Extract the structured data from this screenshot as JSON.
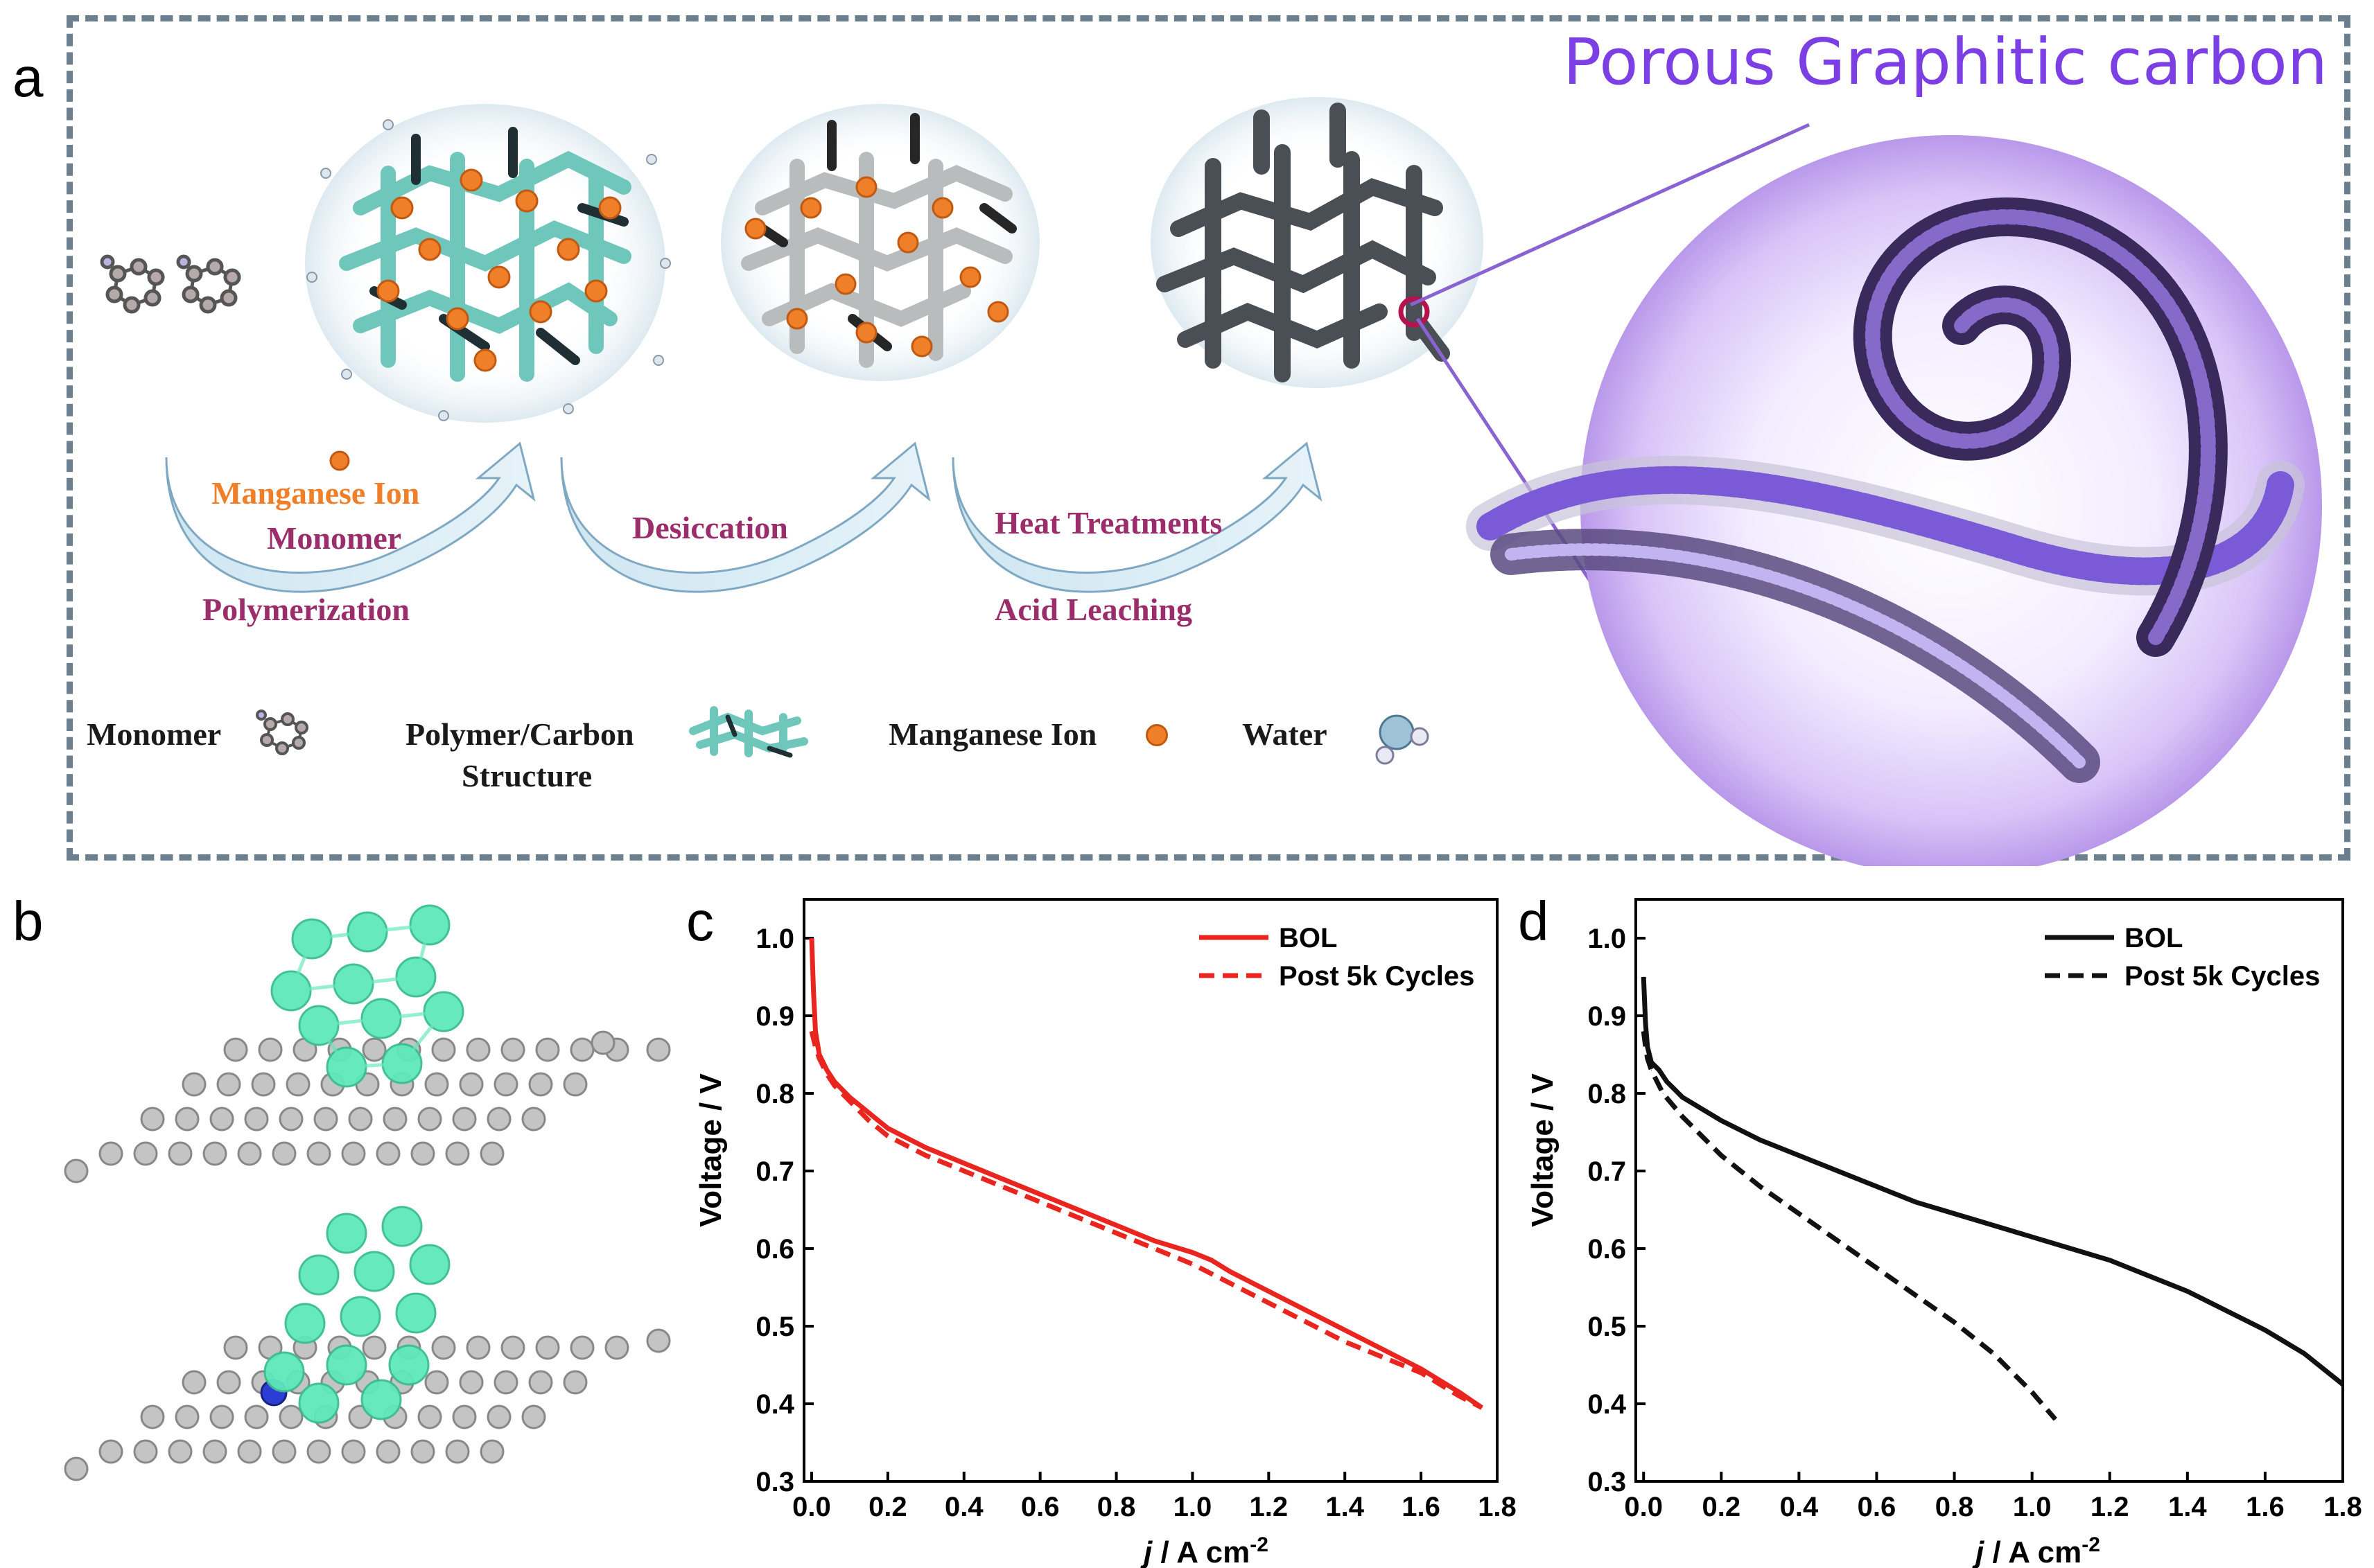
{
  "panel_labels": {
    "a": "a",
    "b": "b",
    "c": "c",
    "d": "d"
  },
  "panel_a": {
    "title": "Porous Graphitic carbon",
    "step1_top": "Manganese Ion",
    "step1_mid": "Monomer",
    "step1_bottom": "Polymerization",
    "step2": "Desiccation",
    "step3_top": "Heat Treatments",
    "step3_bottom": "Acid Leaching",
    "legend": {
      "monomer": "Monomer",
      "polymer_line1": "Polymer/Carbon",
      "polymer_line2": "Structure",
      "manganese": "Manganese Ion",
      "water": "Water"
    },
    "colors": {
      "manganese": "#f07f2a",
      "polymer": "#8fd6cc",
      "title": "#7b3fe4",
      "step": "#9b2d6b",
      "border": "#6b7f8e"
    }
  },
  "chart_data": [
    {
      "panel": "c",
      "type": "line",
      "xlabel_italic": "j",
      "xlabel_rest": " / A cm",
      "xlabel_sup": "-2",
      "ylabel": "Voltage / V",
      "xlim": [
        -0.02,
        1.8
      ],
      "ylim": [
        0.3,
        1.05
      ],
      "xticks": [
        "0.0",
        "0.2",
        "0.4",
        "0.6",
        "0.8",
        "1.0",
        "1.2",
        "1.4",
        "1.6",
        "1.8"
      ],
      "yticks": [
        "0.3",
        "0.4",
        "0.5",
        "0.6",
        "0.7",
        "0.8",
        "0.9",
        "1.0"
      ],
      "legend_position": "top-right",
      "series": [
        {
          "name": "BOL",
          "color": "#e8261f",
          "dash": "solid",
          "x": [
            0.0,
            0.005,
            0.01,
            0.02,
            0.04,
            0.06,
            0.1,
            0.15,
            0.2,
            0.3,
            0.4,
            0.5,
            0.6,
            0.7,
            0.8,
            0.9,
            1.0,
            1.05,
            1.1,
            1.2,
            1.3,
            1.4,
            1.5,
            1.6,
            1.7,
            1.76
          ],
          "y": [
            1.0,
            0.93,
            0.88,
            0.85,
            0.83,
            0.815,
            0.795,
            0.775,
            0.755,
            0.73,
            0.71,
            0.69,
            0.67,
            0.65,
            0.63,
            0.61,
            0.595,
            0.585,
            0.57,
            0.545,
            0.52,
            0.495,
            0.47,
            0.445,
            0.415,
            0.395
          ]
        },
        {
          "name": "Post 5k Cycles",
          "color": "#e8261f",
          "dash": "dashed",
          "x": [
            0.0,
            0.01,
            0.02,
            0.04,
            0.06,
            0.1,
            0.15,
            0.2,
            0.3,
            0.4,
            0.5,
            0.6,
            0.7,
            0.8,
            0.9,
            1.0,
            1.1,
            1.2,
            1.3,
            1.4,
            1.5,
            1.6,
            1.7,
            1.76
          ],
          "y": [
            0.88,
            0.86,
            0.845,
            0.825,
            0.81,
            0.79,
            0.765,
            0.745,
            0.72,
            0.7,
            0.68,
            0.66,
            0.64,
            0.62,
            0.6,
            0.58,
            0.555,
            0.53,
            0.505,
            0.48,
            0.46,
            0.44,
            0.41,
            0.395
          ]
        }
      ]
    },
    {
      "panel": "d",
      "type": "line",
      "xlabel_italic": "j",
      "xlabel_rest": " / A cm",
      "xlabel_sup": "-2",
      "ylabel": "Voltage / V",
      "xlim": [
        -0.02,
        1.8
      ],
      "ylim": [
        0.3,
        1.05
      ],
      "xticks": [
        "0.0",
        "0.2",
        "0.4",
        "0.6",
        "0.8",
        "1.0",
        "1.2",
        "1.4",
        "1.6",
        "1.8"
      ],
      "yticks": [
        "0.3",
        "0.4",
        "0.5",
        "0.6",
        "0.7",
        "0.8",
        "0.9",
        "1.0"
      ],
      "legend_position": "top-right",
      "series": [
        {
          "name": "BOL",
          "color": "#111111",
          "dash": "solid",
          "x": [
            0.0,
            0.005,
            0.01,
            0.02,
            0.04,
            0.06,
            0.1,
            0.2,
            0.3,
            0.4,
            0.5,
            0.6,
            0.7,
            0.8,
            0.9,
            1.0,
            1.1,
            1.2,
            1.3,
            1.4,
            1.5,
            1.6,
            1.7,
            1.8
          ],
          "y": [
            0.95,
            0.89,
            0.86,
            0.84,
            0.83,
            0.815,
            0.795,
            0.765,
            0.74,
            0.72,
            0.7,
            0.68,
            0.66,
            0.645,
            0.63,
            0.615,
            0.6,
            0.585,
            0.565,
            0.545,
            0.52,
            0.495,
            0.465,
            0.425
          ]
        },
        {
          "name": "Post 5k Cycles",
          "color": "#111111",
          "dash": "dashed",
          "x": [
            0.0,
            0.005,
            0.01,
            0.02,
            0.05,
            0.1,
            0.15,
            0.2,
            0.3,
            0.4,
            0.5,
            0.6,
            0.7,
            0.8,
            0.9,
            1.0,
            1.06
          ],
          "y": [
            0.88,
            0.86,
            0.845,
            0.83,
            0.8,
            0.77,
            0.745,
            0.72,
            0.68,
            0.645,
            0.61,
            0.575,
            0.54,
            0.505,
            0.465,
            0.415,
            0.38
          ]
        }
      ]
    }
  ]
}
